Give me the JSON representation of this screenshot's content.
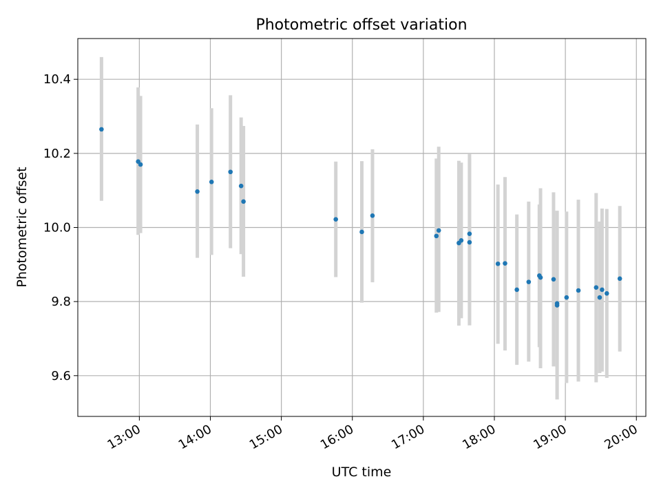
{
  "chart_data": {
    "type": "scatter",
    "title": "Photometric offset variation",
    "xlabel": "UTC time",
    "ylabel": "Photometric offset",
    "xlim": [
      "12:08",
      "20:08"
    ],
    "ylim": [
      9.49,
      10.51
    ],
    "x_ticks": [
      "13:00",
      "14:00",
      "15:00",
      "16:00",
      "17:00",
      "18:00",
      "19:00",
      "20:00"
    ],
    "y_ticks": [
      "9.6",
      "9.8",
      "10.0",
      "10.2",
      "10.4"
    ],
    "grid": true,
    "colors": {
      "points": "#1f77b4",
      "errorbars": "#d3d3d3",
      "grid": "#b0b0b0"
    },
    "points": [
      {
        "x": "12:28",
        "y": 10.265,
        "lo": 10.072,
        "hi": 10.46
      },
      {
        "x": "12:59",
        "y": 10.178,
        "lo": 9.98,
        "hi": 10.378
      },
      {
        "x": "13:01",
        "y": 10.17,
        "lo": 9.985,
        "hi": 10.355
      },
      {
        "x": "13:49",
        "y": 10.097,
        "lo": 9.918,
        "hi": 10.278
      },
      {
        "x": "14:01",
        "y": 10.123,
        "lo": 9.926,
        "hi": 10.322
      },
      {
        "x": "14:17",
        "y": 10.15,
        "lo": 9.944,
        "hi": 10.357
      },
      {
        "x": "14:26",
        "y": 10.112,
        "lo": 9.928,
        "hi": 10.297
      },
      {
        "x": "14:28",
        "y": 10.07,
        "lo": 9.867,
        "hi": 10.274
      },
      {
        "x": "15:46",
        "y": 10.022,
        "lo": 9.866,
        "hi": 10.178
      },
      {
        "x": "16:08",
        "y": 9.988,
        "lo": 9.797,
        "hi": 10.179
      },
      {
        "x": "16:17",
        "y": 10.032,
        "lo": 9.852,
        "hi": 10.211
      },
      {
        "x": "17:11",
        "y": 9.977,
        "lo": 9.77,
        "hi": 10.186
      },
      {
        "x": "17:13",
        "y": 9.992,
        "lo": 9.772,
        "hi": 10.218
      },
      {
        "x": "17:30",
        "y": 9.958,
        "lo": 9.735,
        "hi": 10.18
      },
      {
        "x": "17:32",
        "y": 9.965,
        "lo": 9.755,
        "hi": 10.175
      },
      {
        "x": "17:39",
        "y": 9.983,
        "lo": 9.736,
        "hi": 10.198
      },
      {
        "x": "17:39",
        "y": 9.96,
        "lo": 9.736,
        "hi": 10.185
      },
      {
        "x": "18:03",
        "y": 9.902,
        "lo": 9.686,
        "hi": 10.116
      },
      {
        "x": "18:09",
        "y": 9.903,
        "lo": 9.668,
        "hi": 10.136
      },
      {
        "x": "18:19",
        "y": 9.832,
        "lo": 9.629,
        "hi": 10.035
      },
      {
        "x": "18:29",
        "y": 9.853,
        "lo": 9.638,
        "hi": 10.07
      },
      {
        "x": "18:38",
        "y": 9.87,
        "lo": 9.677,
        "hi": 10.062
      },
      {
        "x": "18:39",
        "y": 9.865,
        "lo": 9.62,
        "hi": 10.106
      },
      {
        "x": "18:50",
        "y": 9.86,
        "lo": 9.625,
        "hi": 10.095
      },
      {
        "x": "18:53",
        "y": 9.795,
        "lo": 9.536,
        "hi": 10.045
      },
      {
        "x": "18:53",
        "y": 9.79,
        "lo": 9.536,
        "hi": 10.045
      },
      {
        "x": "19:01",
        "y": 9.811,
        "lo": 9.58,
        "hi": 10.043
      },
      {
        "x": "19:11",
        "y": 9.83,
        "lo": 9.584,
        "hi": 10.075
      },
      {
        "x": "19:26",
        "y": 9.838,
        "lo": 9.582,
        "hi": 10.093
      },
      {
        "x": "19:29",
        "y": 9.811,
        "lo": 9.607,
        "hi": 10.016
      },
      {
        "x": "19:31",
        "y": 9.832,
        "lo": 9.611,
        "hi": 10.051
      },
      {
        "x": "19:35",
        "y": 9.822,
        "lo": 9.594,
        "hi": 10.05
      },
      {
        "x": "19:46",
        "y": 9.862,
        "lo": 9.665,
        "hi": 10.058
      }
    ]
  }
}
